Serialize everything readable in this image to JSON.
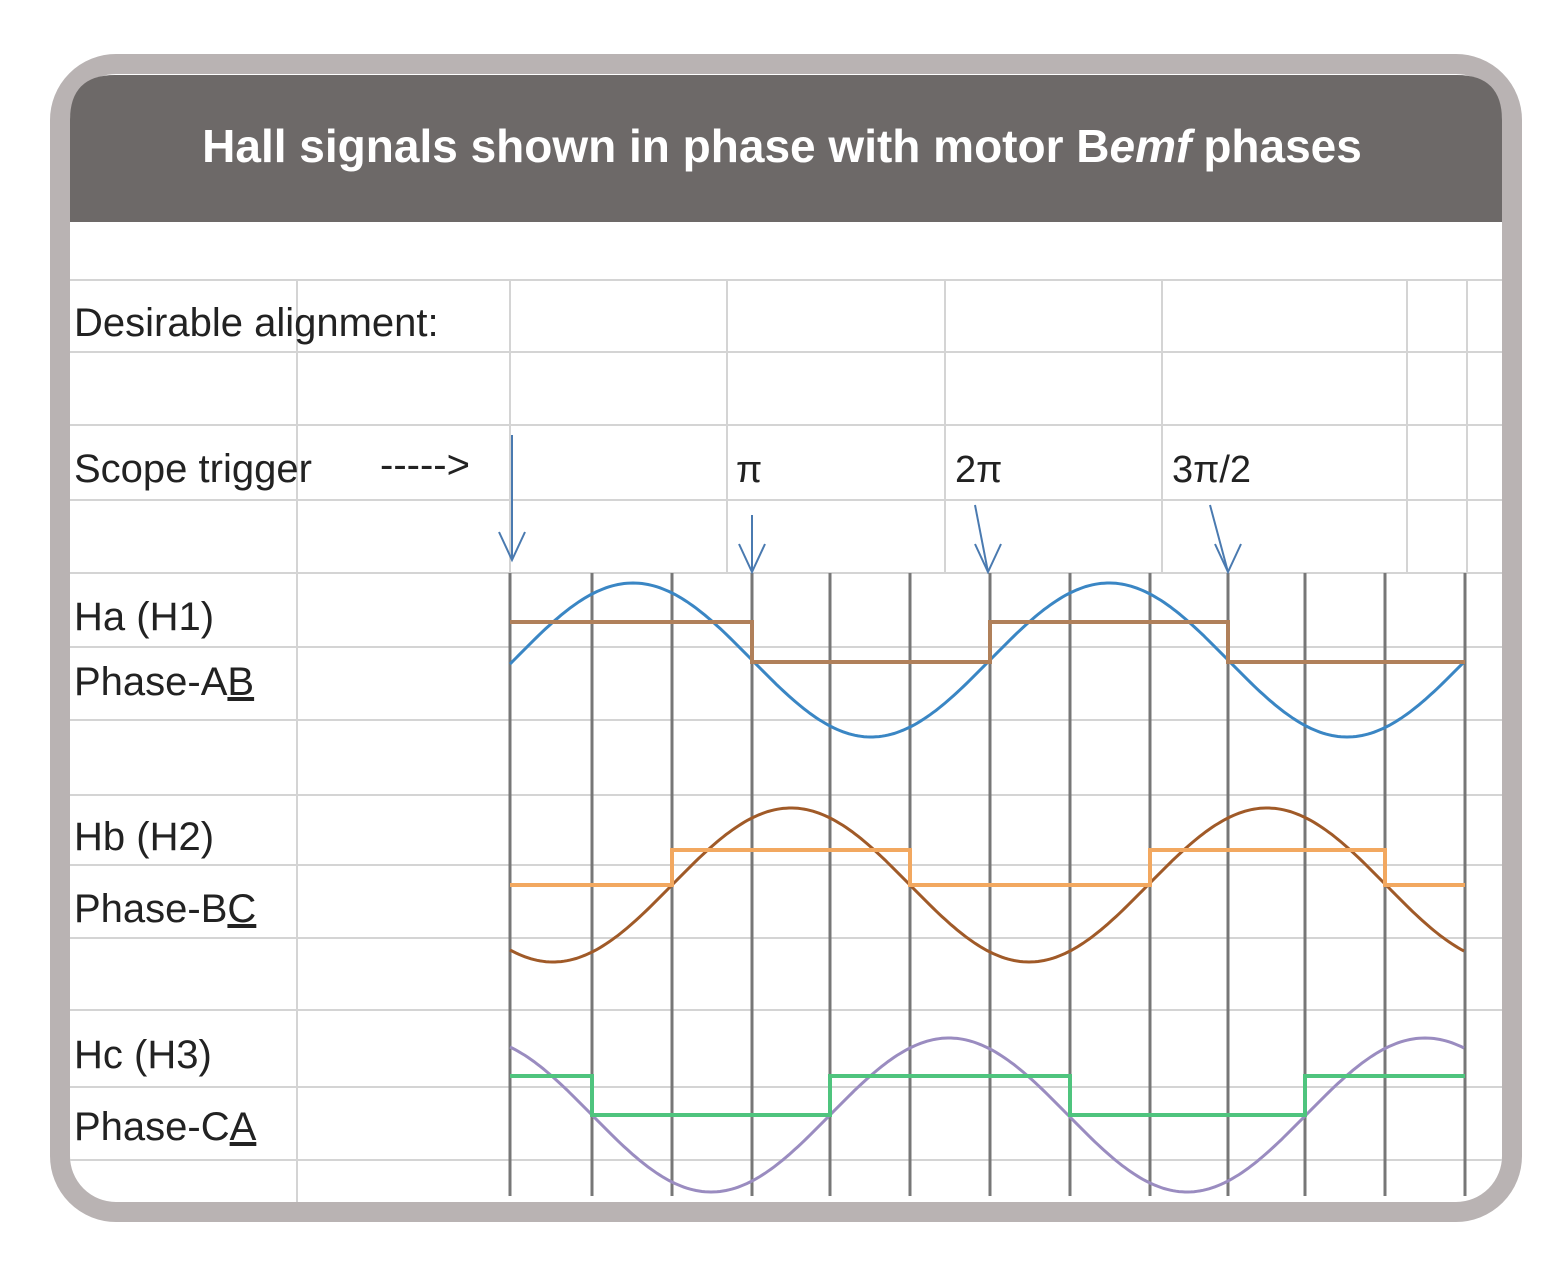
{
  "header": {
    "title": {
      "before": "Hall signals shown in phase with motor B",
      "italic": "emf",
      "after": "phases"
    }
  },
  "rows": {
    "alignment": "Desirable alignment:",
    "trigger": "Scope trigger",
    "trigger_arrow": "----->"
  },
  "markers": [
    "π",
    "2π",
    "3π/2"
  ],
  "signals": [
    {
      "hall": "Ha (H1)",
      "phase": "Phase-A",
      "phase_underlined": "B"
    },
    {
      "hall": "Hb (H2)",
      "phase": "Phase-B",
      "phase_underlined": "C"
    },
    {
      "hall": "Hc (H3)",
      "phase": "Phase-C",
      "phase_underlined": "A"
    }
  ]
}
